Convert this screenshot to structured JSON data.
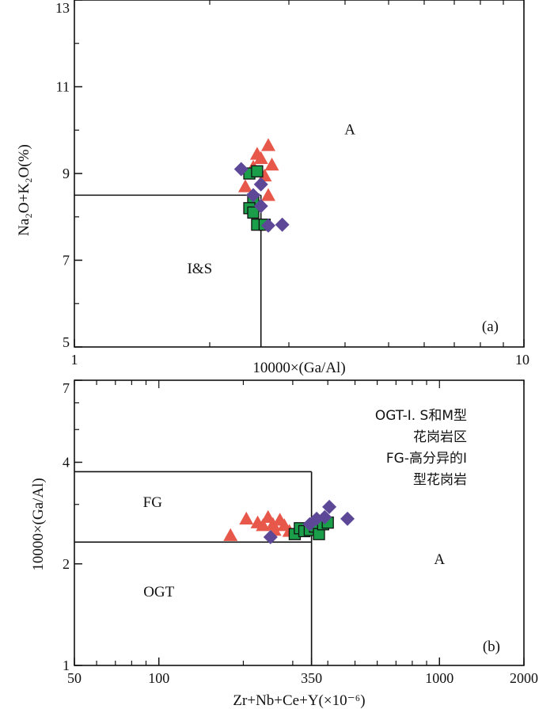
{
  "chart_data": [
    {
      "id": "a",
      "type": "scatter",
      "panel_label": "(a)",
      "xlabel": "10000×(Ga/Al)",
      "ylabel": "Na₂O+K₂O(%)",
      "x_scale": "log",
      "xlim": [
        1,
        10
      ],
      "ylim": [
        5,
        13
      ],
      "xticks": [
        1,
        10
      ],
      "yticks": [
        5,
        7,
        9,
        11,
        13
      ],
      "boundary": {
        "x": 2.6,
        "y": 8.5
      },
      "region_labels": [
        {
          "text": "A",
          "x": 4.1,
          "y": 9.9
        },
        {
          "text": "I&S",
          "x": 1.9,
          "y": 6.7
        }
      ],
      "series": [
        {
          "marker": "triangle",
          "color": "#e8584a",
          "points": [
            [
              2.5,
              9.15
            ],
            [
              2.6,
              9.35
            ],
            [
              2.7,
              9.65
            ],
            [
              2.75,
              9.2
            ],
            [
              2.65,
              8.95
            ],
            [
              2.4,
              8.7
            ],
            [
              2.7,
              8.5
            ],
            [
              2.55,
              9.45
            ]
          ]
        },
        {
          "marker": "square",
          "color": "#1a9e4a",
          "points": [
            [
              2.45,
              9.0
            ],
            [
              2.55,
              9.05
            ],
            [
              2.5,
              8.4
            ],
            [
              2.45,
              8.2
            ],
            [
              2.5,
              8.1
            ],
            [
              2.55,
              7.82
            ],
            [
              2.65,
              7.82
            ]
          ]
        },
        {
          "marker": "diamond",
          "color": "#5c4897",
          "points": [
            [
              2.35,
              9.1
            ],
            [
              2.6,
              8.75
            ],
            [
              2.5,
              8.5
            ],
            [
              2.6,
              8.25
            ],
            [
              2.7,
              7.8
            ],
            [
              2.9,
              7.82
            ]
          ]
        }
      ]
    },
    {
      "id": "b",
      "type": "scatter",
      "panel_label": "(b)",
      "xlabel": "Zr+Nb+Ce+Y(×10⁻⁶)",
      "ylabel": "10000×(Ga/Al)",
      "x_scale": "log",
      "y_scale": "log",
      "xlim": [
        50,
        2000
      ],
      "ylim": [
        1,
        7
      ],
      "xticks": [
        50,
        100,
        350,
        1000,
        2000
      ],
      "yticks": [
        1,
        2,
        4,
        7
      ],
      "boundary": {
        "x": 350,
        "y_upper": 3.75,
        "y_lower": 2.32
      },
      "region_labels": [
        {
          "text": "FG",
          "x": 95,
          "y": 2.95
        },
        {
          "text": "OGT",
          "x": 100,
          "y": 1.6
        },
        {
          "text": "A",
          "x": 1000,
          "y": 2.0
        }
      ],
      "legend_note": [
        "OGT-I. S和M型",
        "花岗岩区",
        "FG-高分异的I",
        "型花岗岩"
      ],
      "series": [
        {
          "marker": "triangle",
          "color": "#e8584a",
          "points": [
            [
              180,
              2.43
            ],
            [
              205,
              2.72
            ],
            [
              225,
              2.65
            ],
            [
              235,
              2.6
            ],
            [
              245,
              2.75
            ],
            [
              258,
              2.52
            ],
            [
              270,
              2.7
            ],
            [
              280,
              2.6
            ],
            [
              292,
              2.5
            ],
            [
              255,
              2.62
            ]
          ]
        },
        {
          "marker": "square",
          "color": "#1a9e4a",
          "points": [
            [
              305,
              2.45
            ],
            [
              318,
              2.55
            ],
            [
              330,
              2.5
            ],
            [
              345,
              2.52
            ],
            [
              360,
              2.58
            ],
            [
              372,
              2.45
            ],
            [
              385,
              2.62
            ],
            [
              400,
              2.65
            ]
          ]
        },
        {
          "marker": "diamond",
          "color": "#5c4897",
          "points": [
            [
              250,
              2.4
            ],
            [
              345,
              2.62
            ],
            [
              365,
              2.72
            ],
            [
              390,
              2.75
            ],
            [
              405,
              2.95
            ],
            [
              470,
              2.72
            ]
          ]
        }
      ]
    }
  ]
}
